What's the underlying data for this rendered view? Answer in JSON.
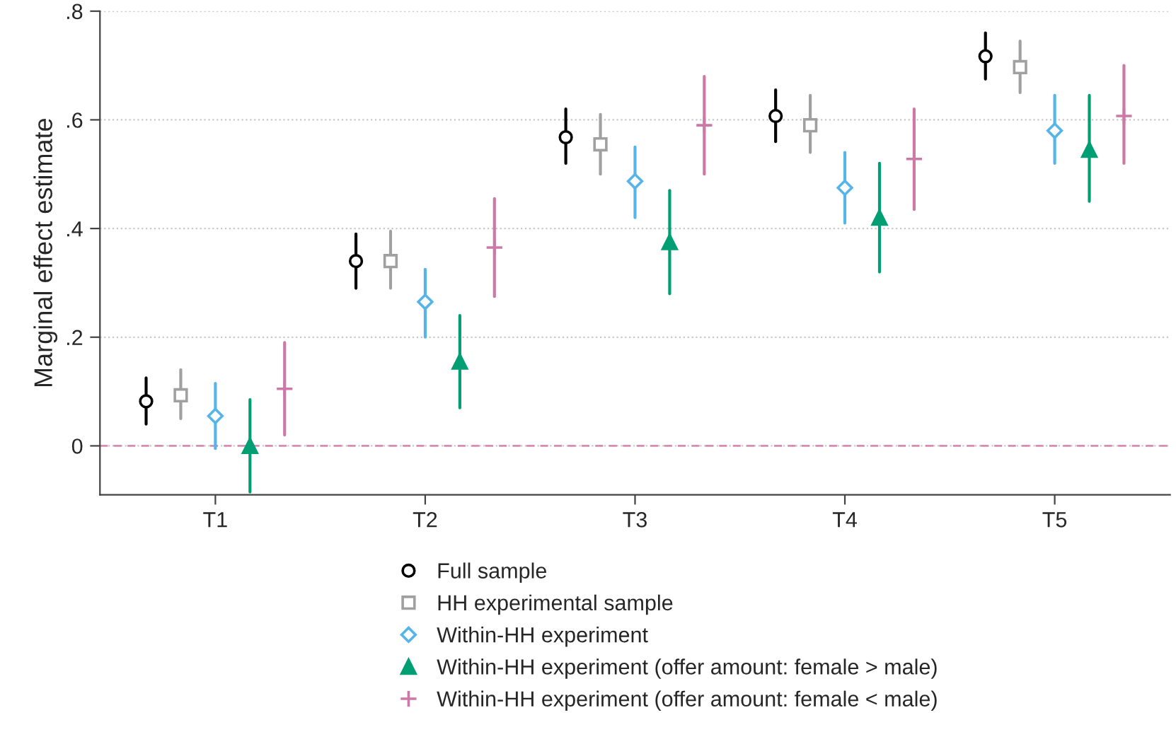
{
  "chart_data": {
    "type": "scatter",
    "ylabel": "Marginal effect estimate",
    "categories": [
      "T1",
      "T2",
      "T3",
      "T4",
      "T5"
    ],
    "ylim": [
      -0.09,
      0.8
    ],
    "yticks": [
      0,
      {
        "value": 0.2,
        "label": ".2"
      },
      {
        "value": 0.4,
        "label": ".4"
      },
      {
        "value": 0.6,
        "label": ".6"
      },
      {
        "value": 0.8,
        "label": ".8"
      }
    ],
    "grid": "y",
    "legend": "bottom",
    "ref_lines": [
      {
        "axis": "y",
        "value": 0,
        "color": "#d98cb3",
        "line_style": "dashed"
      }
    ],
    "series": [
      {
        "name": "Full sample",
        "color": "#000000",
        "marker": "circle",
        "values": [
          0.082,
          0.34,
          0.568,
          0.607,
          0.717
        ],
        "errors": [
          [
            0.04,
            0.125
          ],
          [
            0.29,
            0.39
          ],
          [
            0.52,
            0.62
          ],
          [
            0.56,
            0.655
          ],
          [
            0.675,
            0.76
          ]
        ]
      },
      {
        "name": "HH experimental sample",
        "color": "#a0a0a0",
        "marker": "square",
        "values": [
          0.093,
          0.34,
          0.555,
          0.59,
          0.697
        ],
        "errors": [
          [
            0.05,
            0.14
          ],
          [
            0.29,
            0.395
          ],
          [
            0.5,
            0.61
          ],
          [
            0.54,
            0.645
          ],
          [
            0.65,
            0.745
          ]
        ]
      },
      {
        "name": "Within-HH experiment",
        "color": "#56b4e9",
        "marker": "diamond",
        "values": [
          0.055,
          0.265,
          0.487,
          0.475,
          0.58
        ],
        "errors": [
          [
            -0.005,
            0.115
          ],
          [
            0.2,
            0.325
          ],
          [
            0.42,
            0.55
          ],
          [
            0.41,
            0.54
          ],
          [
            0.52,
            0.645
          ]
        ]
      },
      {
        "name": "Within-HH experiment (offer amount: female > male)",
        "color": "#009e73",
        "marker": "triangle",
        "values": [
          0.0,
          0.155,
          0.375,
          0.42,
          0.545
        ],
        "errors": [
          [
            -0.085,
            0.085
          ],
          [
            0.07,
            0.24
          ],
          [
            0.28,
            0.47
          ],
          [
            0.32,
            0.52
          ],
          [
            0.45,
            0.645
          ]
        ]
      },
      {
        "name": "Within-HH experiment (offer amount: female < male)",
        "color": "#cc79a7",
        "marker": "cross",
        "values": [
          0.105,
          0.365,
          0.59,
          0.528,
          0.607
        ],
        "errors": [
          [
            0.02,
            0.19
          ],
          [
            0.275,
            0.455
          ],
          [
            0.5,
            0.68
          ],
          [
            0.435,
            0.62
          ],
          [
            0.52,
            0.7
          ]
        ]
      }
    ]
  }
}
